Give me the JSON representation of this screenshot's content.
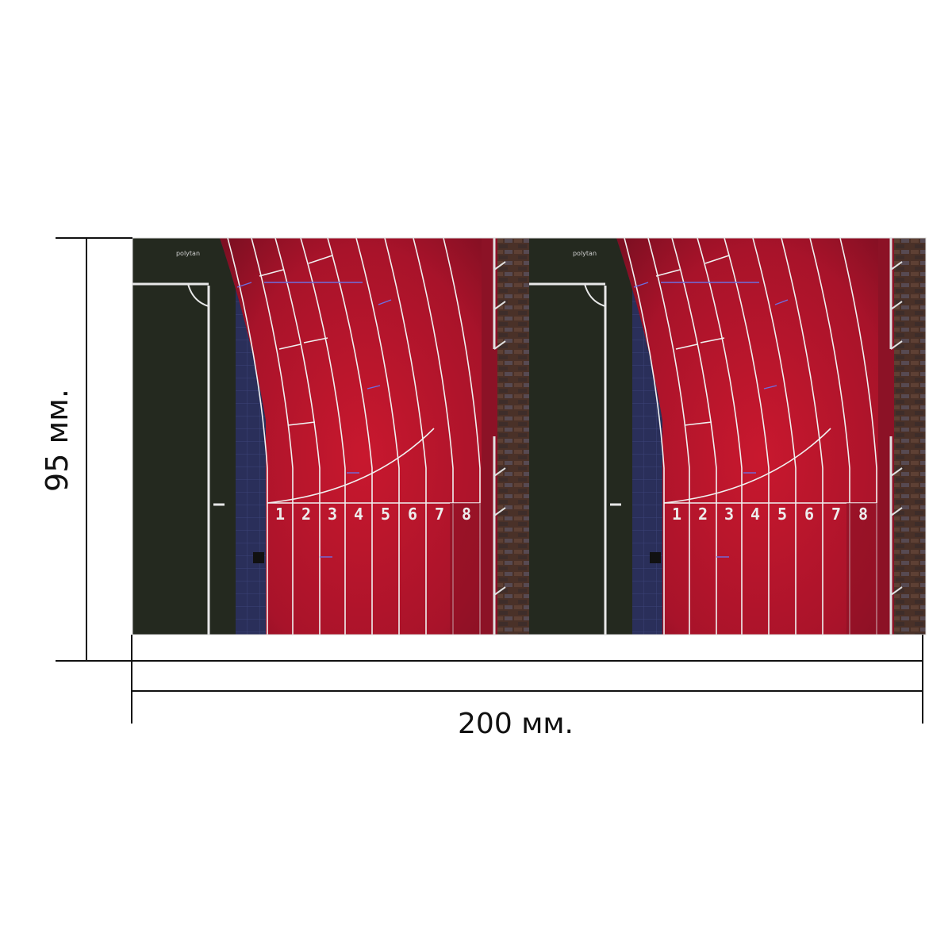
{
  "dimensions": {
    "height_label": "95 мм.",
    "width_label": "200 мм."
  },
  "track": {
    "lane_numbers": [
      "1",
      "2",
      "3",
      "4",
      "5",
      "6",
      "7",
      "8"
    ],
    "brand_text": "polytan",
    "panel_count": 2
  },
  "colors": {
    "track": "#b5162a",
    "infield": "#252a22",
    "lines": "#f0f0f0",
    "background": "#ffffff"
  }
}
